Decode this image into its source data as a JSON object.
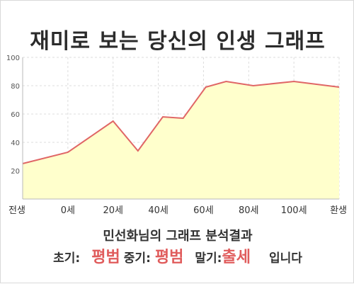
{
  "title": "재미로 보는 당신의 인생 그래프",
  "summary": "민선화님의 그래프 분석결과",
  "result": {
    "early_label": "초기:",
    "early_value": "평범",
    "mid_label": "중기:",
    "mid_value": "평범",
    "late_label": "말기:",
    "late_value": "출세",
    "suffix": "입니다"
  },
  "colors": {
    "line": "#e06666",
    "fill": "#ffffcc",
    "highlight": "#e05c5c",
    "title": "#2b2b2b"
  },
  "chart_data": {
    "type": "area",
    "title": "재미로 보는 당신의 인생 그래프",
    "xlabel": "",
    "ylabel": "",
    "x_ticks": [
      {
        "pos": 0,
        "label": "전생"
      },
      {
        "pos": 1,
        "label": "0세"
      },
      {
        "pos": 2,
        "label": "20세"
      },
      {
        "pos": 3,
        "label": "40세"
      },
      {
        "pos": 4,
        "label": "60세"
      },
      {
        "pos": 5,
        "label": "80세"
      },
      {
        "pos": 6,
        "label": "100세"
      },
      {
        "pos": 7,
        "label": "환생"
      }
    ],
    "xlim": [
      0,
      7
    ],
    "ylim": [
      0,
      100
    ],
    "y_ticks": [
      20,
      40,
      60,
      80,
      100
    ],
    "grid": true,
    "series": [
      {
        "points": [
          [
            0,
            25
          ],
          [
            1,
            33
          ],
          [
            2,
            55
          ],
          [
            2.55,
            34
          ],
          [
            3.1,
            58
          ],
          [
            3.55,
            57
          ],
          [
            4.05,
            79
          ],
          [
            4.5,
            83
          ],
          [
            5.1,
            80
          ],
          [
            6,
            83
          ],
          [
            7,
            79
          ]
        ]
      }
    ]
  }
}
